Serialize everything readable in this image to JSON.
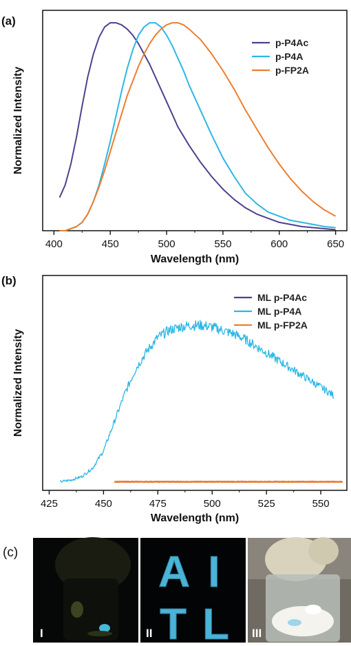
{
  "chart_data": [
    {
      "panel": "(a)",
      "type": "line",
      "xlabel": "Wavelength (nm)",
      "ylabel": "Normalized Intensity",
      "xlim": [
        390,
        660
      ],
      "ylim": [
        0,
        1.06
      ],
      "xticks": [
        400,
        450,
        500,
        550,
        600,
        650
      ],
      "legend_position": "top-right",
      "series": [
        {
          "name": "p-P4Ac",
          "color": "#4f3f8f",
          "x": [
            405,
            410,
            415,
            420,
            425,
            430,
            435,
            440,
            445,
            450,
            455,
            460,
            465,
            470,
            475,
            480,
            485,
            490,
            495,
            500,
            505,
            510,
            520,
            530,
            540,
            550,
            560,
            570,
            580,
            590,
            600,
            610,
            620,
            630,
            640,
            650
          ],
          "y": [
            0.16,
            0.22,
            0.32,
            0.45,
            0.6,
            0.74,
            0.85,
            0.93,
            0.98,
            1.0,
            1.0,
            0.99,
            0.97,
            0.94,
            0.9,
            0.85,
            0.8,
            0.74,
            0.68,
            0.62,
            0.56,
            0.5,
            0.41,
            0.33,
            0.26,
            0.2,
            0.15,
            0.11,
            0.08,
            0.06,
            0.04,
            0.03,
            0.02,
            0.015,
            0.01,
            0.005
          ]
        },
        {
          "name": "p-P4A",
          "color": "#2cb6e6",
          "x": [
            405,
            410,
            415,
            420,
            425,
            430,
            435,
            440,
            445,
            450,
            455,
            460,
            465,
            470,
            475,
            480,
            485,
            490,
            495,
            500,
            505,
            510,
            515,
            520,
            530,
            540,
            550,
            560,
            570,
            580,
            590,
            600,
            610,
            620,
            630,
            640,
            650
          ],
          "y": [
            0.0,
            0.0,
            0.01,
            0.02,
            0.04,
            0.08,
            0.14,
            0.22,
            0.32,
            0.43,
            0.55,
            0.67,
            0.78,
            0.87,
            0.94,
            0.98,
            1.0,
            1.0,
            0.98,
            0.94,
            0.89,
            0.83,
            0.77,
            0.7,
            0.58,
            0.46,
            0.35,
            0.26,
            0.18,
            0.13,
            0.09,
            0.07,
            0.05,
            0.04,
            0.03,
            0.02,
            0.015
          ]
        },
        {
          "name": "p-FP2A",
          "color": "#ee7d2f",
          "x": [
            405,
            410,
            415,
            420,
            425,
            430,
            435,
            440,
            445,
            450,
            455,
            460,
            465,
            470,
            475,
            480,
            485,
            490,
            495,
            500,
            505,
            510,
            515,
            520,
            530,
            540,
            550,
            560,
            570,
            580,
            590,
            600,
            610,
            620,
            630,
            640,
            650
          ],
          "y": [
            0.0,
            0.0,
            0.01,
            0.02,
            0.04,
            0.08,
            0.14,
            0.21,
            0.29,
            0.38,
            0.47,
            0.56,
            0.65,
            0.72,
            0.79,
            0.85,
            0.9,
            0.94,
            0.97,
            0.99,
            1.0,
            1.0,
            0.99,
            0.97,
            0.92,
            0.85,
            0.77,
            0.68,
            0.58,
            0.49,
            0.4,
            0.32,
            0.25,
            0.19,
            0.14,
            0.1,
            0.07
          ]
        }
      ]
    },
    {
      "panel": "(b)",
      "type": "line",
      "xlabel": "Wavelength (nm)",
      "ylabel": "Normalized Intensity",
      "xlim": [
        422,
        562
      ],
      "ylim": [
        -0.05,
        1.2
      ],
      "xticks": [
        425,
        450,
        475,
        500,
        525,
        550
      ],
      "legend_position": "top-right",
      "series": [
        {
          "name": "ML p-P4Ac",
          "color": "#4f3f8f",
          "x": [
            455,
            470,
            490,
            510,
            530,
            550,
            560
          ],
          "y": [
            0.0,
            0.0,
            0.0,
            0.0,
            0.0,
            0.0,
            0.0
          ]
        },
        {
          "name": "ML p-P4A",
          "color": "#2cb6e6",
          "x": [
            430,
            435,
            440,
            445,
            450,
            455,
            460,
            465,
            470,
            475,
            480,
            485,
            490,
            495,
            500,
            505,
            510,
            515,
            520,
            525,
            530,
            535,
            540,
            545,
            550,
            555,
            556
          ],
          "y": [
            0.0,
            0.01,
            0.03,
            0.08,
            0.18,
            0.35,
            0.52,
            0.66,
            0.76,
            0.84,
            0.88,
            0.9,
            0.91,
            0.91,
            0.9,
            0.88,
            0.86,
            0.83,
            0.79,
            0.75,
            0.71,
            0.67,
            0.63,
            0.59,
            0.55,
            0.51,
            0.5
          ]
        },
        {
          "name": "ML p-FP2A",
          "color": "#ee7d2f",
          "x": [
            455,
            470,
            490,
            510,
            530,
            550,
            560
          ],
          "y": [
            0.0,
            0.0,
            0.0,
            0.0,
            0.0,
            0.0,
            0.0
          ]
        }
      ]
    }
  ],
  "photos": {
    "panel": "(c)",
    "labels": [
      "I",
      "II",
      "III"
    ],
    "letters": [
      "A",
      "I",
      "T",
      "L"
    ]
  }
}
